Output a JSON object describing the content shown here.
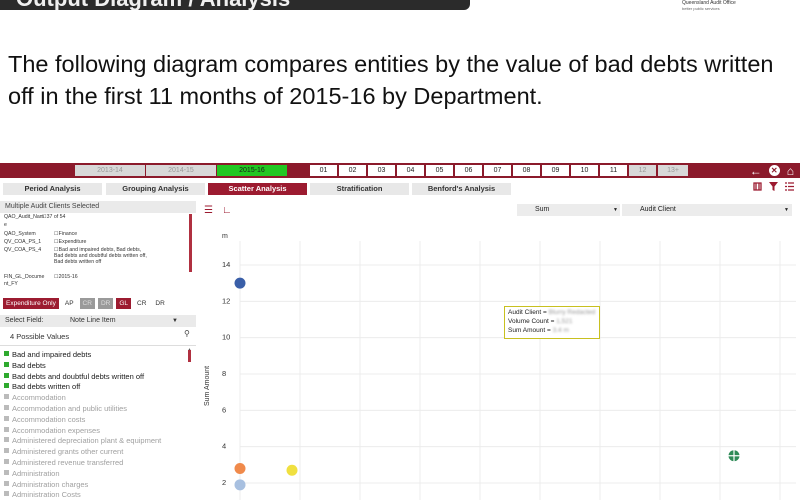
{
  "slide": {
    "title": "Output Diagram / Analysis",
    "org_name": "Queensland Audit Office",
    "org_tagline": "better public services",
    "intro": "The following diagram compares entities by the value of bad debts written off in the first 11 months of 2015-16 by Department."
  },
  "years": [
    "2013-14",
    "2014-15",
    "2015-16"
  ],
  "active_year": "2015-16",
  "months": [
    "01",
    "02",
    "03",
    "04",
    "05",
    "06",
    "07",
    "08",
    "09",
    "10",
    "11",
    "12",
    "13+"
  ],
  "tabs": [
    "Period Analysis",
    "Grouping Analysis",
    "Scatter Analysis",
    "Stratification",
    "Benford's Analysis"
  ],
  "active_tab": "Scatter Analysis",
  "selection": {
    "header": "Multiple Audit Clients Selected",
    "rows": [
      {
        "key": "QAO_Audit_Nam",
        "val": "37 of 54"
      },
      {
        "key": "e",
        "val": ""
      },
      {
        "key": "QAO_System",
        "val": "Finance"
      },
      {
        "key": "QV_COA_PS_1",
        "val": "Expenditure"
      },
      {
        "key": "QV_COA_PS_4",
        "val": "Bad and impaired debts, Bad debts, Bad debts and doubtful debts written off, Bad debts written off"
      },
      {
        "key": "FIN_GL_Docume",
        "val": "2015-16"
      },
      {
        "key": "nt_FY",
        "val": ""
      }
    ]
  },
  "filters": [
    "Expenditure Only",
    "AP",
    "CR",
    "DR",
    "GL",
    "CR",
    "DR"
  ],
  "select_field": {
    "label": "Select Field:",
    "value": "Note Line Item"
  },
  "possible_values_label": "4 Possible Values",
  "values": [
    {
      "label": "Bad and impaired debts",
      "selected": true
    },
    {
      "label": "Bad debts",
      "selected": true
    },
    {
      "label": "Bad debts and doubtful debts written off",
      "selected": true
    },
    {
      "label": "Bad debts written off",
      "selected": true
    },
    {
      "label": "Accommodation",
      "selected": false
    },
    {
      "label": "Accommodation and public utilities",
      "selected": false
    },
    {
      "label": "Accommodation costs",
      "selected": false
    },
    {
      "label": "Accommodation expenses",
      "selected": false
    },
    {
      "label": "Administered depreciation plant & equipment",
      "selected": false
    },
    {
      "label": "Administered grants other current",
      "selected": false
    },
    {
      "label": "Administered revenue transferred",
      "selected": false
    },
    {
      "label": "Administration",
      "selected": false
    },
    {
      "label": "Administration charges",
      "selected": false
    },
    {
      "label": "Administration Costs",
      "selected": false
    }
  ],
  "chart_controls": {
    "measure": "Sum",
    "dimension": "Audit Client"
  },
  "chart_data": {
    "type": "scatter",
    "ylabel": "Sum Amount",
    "yunit": "m",
    "ylim": [
      1.5,
      15
    ],
    "yticks": [
      2,
      4,
      6,
      8,
      10,
      12,
      14
    ],
    "grid": true,
    "points": [
      {
        "x": 1,
        "y": 13.0,
        "color": "#3a5fa8"
      },
      {
        "x": 1,
        "y": 2.8,
        "color": "#f08a4b"
      },
      {
        "x": 1.8,
        "y": 2.7,
        "color": "#f0e040"
      },
      {
        "x": 1,
        "y": 1.9,
        "color": "#a8c0e0"
      },
      {
        "x": 8.6,
        "y": 3.5,
        "color": "#2e8b57"
      }
    ]
  },
  "tooltip": {
    "line1_label": "Audit Client = ",
    "line1_value": "Blurry Redacted",
    "line2_label": "Volume Count = ",
    "line2_value": "1,521",
    "line3_label": "Sum Amount = ",
    "line3_value": "3.4 m"
  }
}
